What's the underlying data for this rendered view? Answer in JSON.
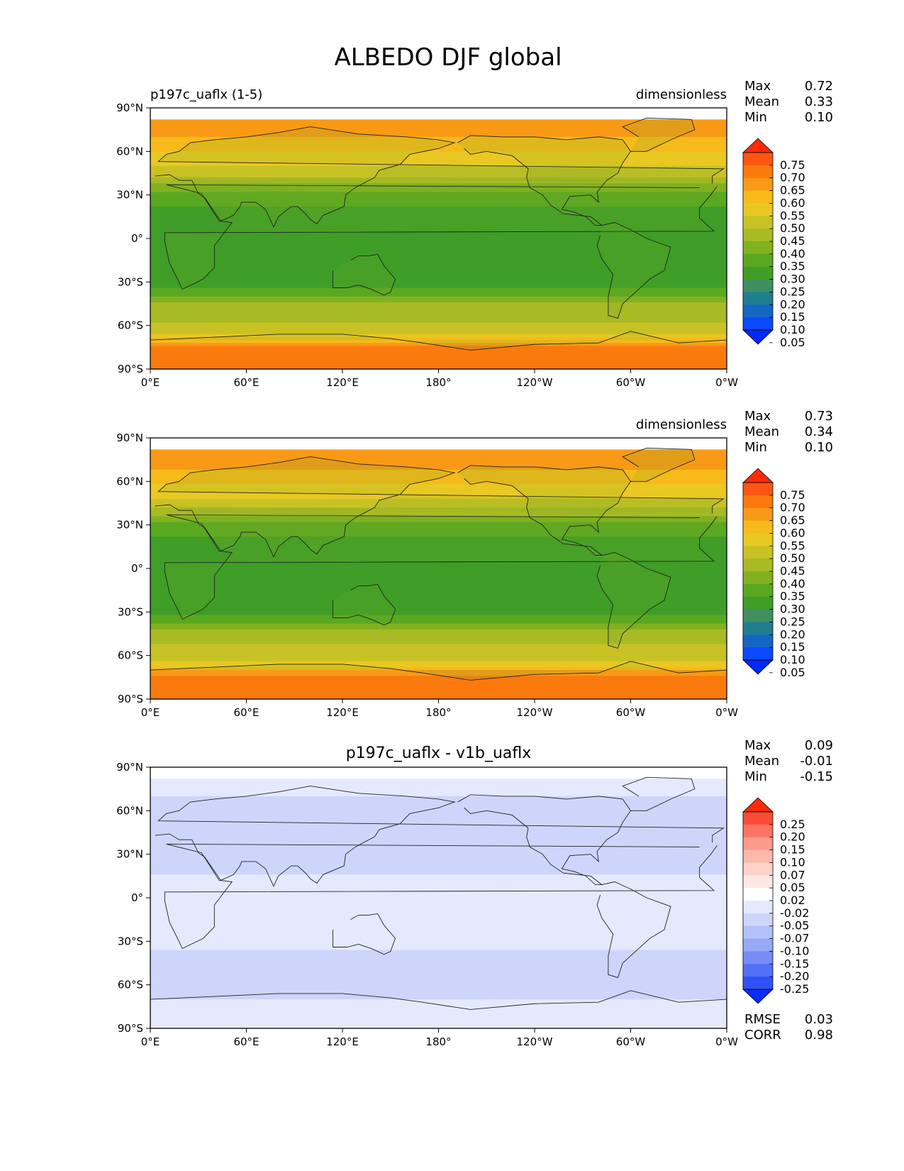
{
  "figure": {
    "title": "ALBEDO DJF global"
  },
  "axes": {
    "x_ticks": [
      "0°E",
      "60°E",
      "120°E",
      "180°",
      "120°W",
      "60°W",
      "0°W"
    ],
    "y_ticks": [
      "90°N",
      "60°N",
      "30°N",
      "0°",
      "30°S",
      "60°S",
      "90°S"
    ]
  },
  "colorbars": {
    "albedo": {
      "levels": [
        "0.75",
        "0.70",
        "0.65",
        "0.60",
        "0.55",
        "0.50",
        "0.45",
        "0.40",
        "0.35",
        "0.30",
        "0.25",
        "0.20",
        "0.15",
        "0.10",
        "0.05"
      ],
      "colors": [
        "#ff2a0a",
        "#ff5512",
        "#fb7a0d",
        "#f89a17",
        "#f6ba1a",
        "#e9c823",
        "#c9c224",
        "#a8ba24",
        "#80b220",
        "#5aa820",
        "#3e9e28",
        "#3f8f60",
        "#1f7f8f",
        "#1466c4",
        "#0a4aff",
        "#0028ff"
      ]
    },
    "diff": {
      "levels": [
        "0.25",
        "0.20",
        "0.15",
        "0.10",
        "0.07",
        "0.05",
        "0.02",
        "-0.02",
        "-0.05",
        "-0.07",
        "-0.10",
        "-0.15",
        "-0.20",
        "-0.25"
      ],
      "colors": [
        "#ff2a0a",
        "#f84c36",
        "#fa7462",
        "#fc9b8a",
        "#fdb8ac",
        "#fed2c9",
        "#ffe8e3",
        "#ffffff",
        "#e4e9fd",
        "#cdd5fb",
        "#b3c0f9",
        "#97a8f7",
        "#778df5",
        "#5470f6",
        "#2f52f8",
        "#0a2cff"
      ]
    }
  },
  "panels": [
    {
      "id": "test",
      "left_title": "p197c_uaflx (1-5)",
      "center_title": "",
      "units": "dimensionless",
      "stats": [
        {
          "label": "Max",
          "value": "0.72"
        },
        {
          "label": "Mean",
          "value": "0.33"
        },
        {
          "label": "Min",
          "value": "0.10"
        }
      ],
      "colorbar": "albedo"
    },
    {
      "id": "reference",
      "left_title": "",
      "center_title": "",
      "units": "dimensionless",
      "stats": [
        {
          "label": "Max",
          "value": "0.73"
        },
        {
          "label": "Mean",
          "value": "0.34"
        },
        {
          "label": "Min",
          "value": "0.10"
        }
      ],
      "colorbar": "albedo"
    },
    {
      "id": "difference",
      "left_title": "",
      "center_title": "p197c_uaflx - v1b_uaflx",
      "units": "",
      "stats": [
        {
          "label": "Max",
          "value": "0.09"
        },
        {
          "label": "Mean",
          "value": "-0.01"
        },
        {
          "label": "Min",
          "value": "-0.15"
        }
      ],
      "extra_stats": [
        {
          "label": "RMSE",
          "value": "0.03"
        },
        {
          "label": "CORR",
          "value": "0.98"
        }
      ],
      "colorbar": "diff"
    }
  ],
  "chart_data": [
    {
      "type": "heatmap",
      "title": "p197c_uaflx (1-5)",
      "units": "dimensionless",
      "xlim": [
        0,
        360
      ],
      "ylim": [
        -90,
        90
      ],
      "x_ticks": [
        0,
        60,
        120,
        180,
        240,
        300,
        360
      ],
      "y_ticks": [
        90,
        60,
        30,
        0,
        -30,
        -60,
        -90
      ],
      "contour_levels": [
        0.05,
        0.1,
        0.15,
        0.2,
        0.25,
        0.3,
        0.35,
        0.4,
        0.45,
        0.5,
        0.55,
        0.6,
        0.65,
        0.7,
        0.75
      ],
      "stats": {
        "max": 0.72,
        "mean": 0.33,
        "min": 0.1
      },
      "zonal_profile": {
        "lat": [
          82,
          70,
          60,
          45,
          30,
          15,
          0,
          -15,
          -30,
          -45,
          -55,
          -65,
          -75,
          -90
        ],
        "value": [
          0.62,
          0.6,
          0.55,
          0.47,
          0.33,
          0.27,
          0.28,
          0.25,
          0.26,
          0.4,
          0.43,
          0.48,
          0.67,
          0.7
        ]
      }
    },
    {
      "type": "heatmap",
      "title": "",
      "units": "dimensionless",
      "xlim": [
        0,
        360
      ],
      "ylim": [
        -90,
        90
      ],
      "x_ticks": [
        0,
        60,
        120,
        180,
        240,
        300,
        360
      ],
      "y_ticks": [
        90,
        60,
        30,
        0,
        -30,
        -60,
        -90
      ],
      "contour_levels": [
        0.05,
        0.1,
        0.15,
        0.2,
        0.25,
        0.3,
        0.35,
        0.4,
        0.45,
        0.5,
        0.55,
        0.6,
        0.65,
        0.7,
        0.75
      ],
      "stats": {
        "max": 0.73,
        "mean": 0.34,
        "min": 0.1
      },
      "zonal_profile": {
        "lat": [
          82,
          70,
          60,
          45,
          30,
          15,
          0,
          -15,
          -30,
          -45,
          -55,
          -65,
          -75,
          -90
        ],
        "value": [
          0.63,
          0.61,
          0.56,
          0.48,
          0.34,
          0.27,
          0.29,
          0.26,
          0.27,
          0.42,
          0.46,
          0.5,
          0.68,
          0.7
        ]
      }
    },
    {
      "type": "heatmap",
      "title": "p197c_uaflx - v1b_uaflx",
      "units": "",
      "xlim": [
        0,
        360
      ],
      "ylim": [
        -90,
        90
      ],
      "x_ticks": [
        0,
        60,
        120,
        180,
        240,
        300,
        360
      ],
      "y_ticks": [
        90,
        60,
        30,
        0,
        -30,
        -60,
        -90
      ],
      "contour_levels": [
        -0.25,
        -0.2,
        -0.15,
        -0.1,
        -0.07,
        -0.05,
        -0.02,
        0.02,
        0.05,
        0.07,
        0.1,
        0.15,
        0.2,
        0.25
      ],
      "stats": {
        "max": 0.09,
        "mean": -0.01,
        "min": -0.15,
        "rmse": 0.03,
        "corr": 0.98
      },
      "zonal_profile": {
        "lat": [
          82,
          70,
          60,
          45,
          30,
          15,
          0,
          -15,
          -30,
          -45,
          -55,
          -65,
          -75,
          -90
        ],
        "value": [
          0.0,
          -0.02,
          -0.03,
          -0.03,
          -0.03,
          -0.02,
          0.02,
          0.01,
          -0.01,
          -0.04,
          -0.05,
          -0.04,
          0.0,
          0.0
        ]
      }
    }
  ]
}
